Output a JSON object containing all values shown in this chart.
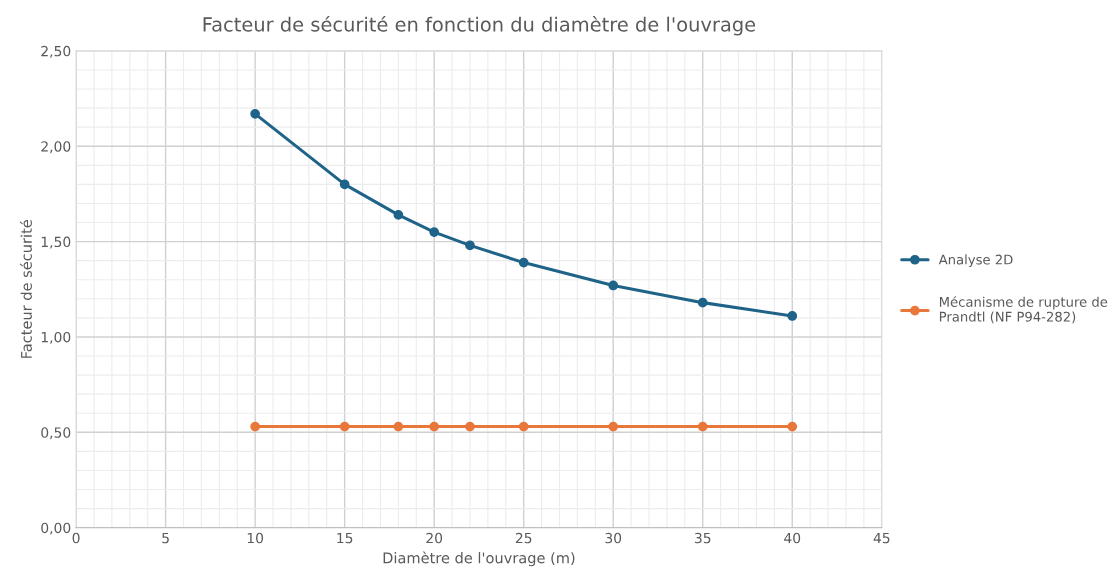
{
  "chart_data": {
    "type": "line",
    "title": "Facteur de sécurité en fonction du diamètre de l'ouvrage",
    "xlabel": "Diamètre de l'ouvrage (m)",
    "ylabel": "Facteur de sécurité",
    "x": [
      10,
      15,
      18,
      20,
      22,
      25,
      30,
      35,
      40
    ],
    "series": [
      {
        "name": "Analyse 2D",
        "color": "#1f6389",
        "values": [
          2.17,
          1.8,
          1.64,
          1.55,
          1.48,
          1.39,
          1.27,
          1.18,
          1.11
        ]
      },
      {
        "name": "Mécanisme de rupture de Prandtl (NF P94-282)",
        "color": "#e8773a",
        "values": [
          0.53,
          0.53,
          0.53,
          0.53,
          0.53,
          0.53,
          0.53,
          0.53,
          0.53
        ]
      }
    ],
    "xlim": [
      0,
      45
    ],
    "xticks": [
      0,
      5,
      10,
      15,
      20,
      25,
      30,
      35,
      40,
      45
    ],
    "ylim": [
      0,
      2.5
    ],
    "yticks": [
      {
        "value": 0,
        "label": "0,00"
      },
      {
        "value": 0.5,
        "label": "0,50"
      },
      {
        "value": 1,
        "label": "1,00"
      },
      {
        "value": 1.5,
        "label": "1,50"
      },
      {
        "value": 2,
        "label": "2,00"
      },
      {
        "value": 2.5,
        "label": "2,50"
      }
    ],
    "grid": true,
    "legend": "right",
    "marker": "circle",
    "line_style": "solid"
  }
}
